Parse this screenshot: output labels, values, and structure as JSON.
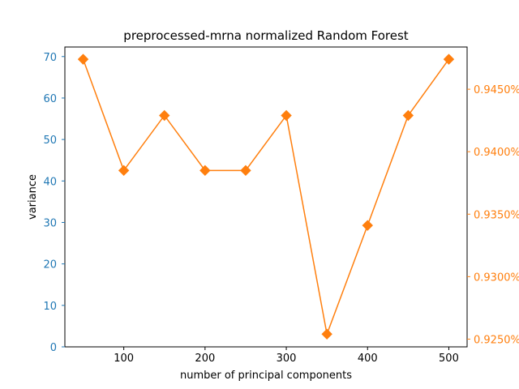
{
  "chart_data": {
    "type": "line",
    "title": "preprocessed-mrna normalized Random Forest",
    "xlabel": "number of principal components",
    "ylabel": "variance",
    "y2label": "",
    "x": [
      50,
      100,
      150,
      200,
      250,
      300,
      350,
      400,
      450,
      500
    ],
    "xticks": [
      100,
      200,
      300,
      400,
      500
    ],
    "xlim": [
      27.5,
      522.5
    ],
    "ylim": [
      0,
      72.3
    ],
    "yticks": [
      0,
      10,
      20,
      30,
      40,
      50,
      60,
      70
    ],
    "y2lim": [
      0.92438,
      0.94838
    ],
    "y2ticks": [
      0.925,
      0.93,
      0.935,
      0.94,
      0.945
    ],
    "y2tick_labels": [
      "0.9250%",
      "0.9300%",
      "0.9350%",
      "0.9400%",
      "0.9450%"
    ],
    "grid": false,
    "series": [
      {
        "axis": "right",
        "marker": "diamond",
        "values": [
          0.9474,
          0.9385,
          0.9429,
          0.9385,
          0.9385,
          0.9429,
          0.9254,
          0.9341,
          0.9429,
          0.9474
        ]
      }
    ],
    "colors": {
      "left_axis": "#1f77b4",
      "right_axis": "#ff7f0e",
      "series": "#ff7f0e"
    }
  }
}
